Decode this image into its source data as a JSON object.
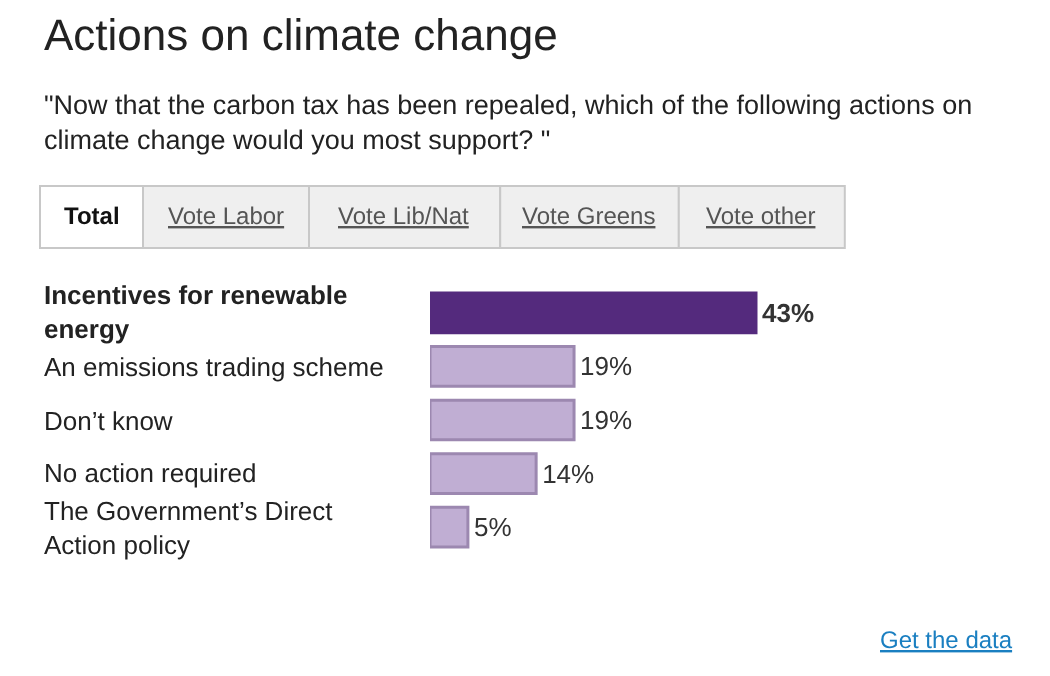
{
  "chart_data": {
    "type": "bar",
    "orientation": "horizontal",
    "title": "Actions on climate change",
    "subtitle": "\"Now that the carbon tax has been repealed, which of the following actions on climate change would you most support? \"",
    "categories": [
      "Incentives for renewable energy",
      "An emissions trading scheme",
      "Don’t know",
      "No action required",
      "The Government’s Direct Action policy"
    ],
    "values": [
      43,
      19,
      19,
      14,
      5
    ],
    "colors": [
      "#542a7d",
      "#c0aed3",
      "#c0aed3",
      "#c0aed3",
      "#c0aed3"
    ],
    "value_labels": [
      "43%",
      "19%",
      "19%",
      "14%",
      "5%"
    ],
    "tick_labels": false,
    "annotations": [
      "Total",
      "Vote Labor",
      "Vote Lib/Nat",
      "Vote Greens",
      "Vote other",
      "Get the data"
    ]
  }
}
